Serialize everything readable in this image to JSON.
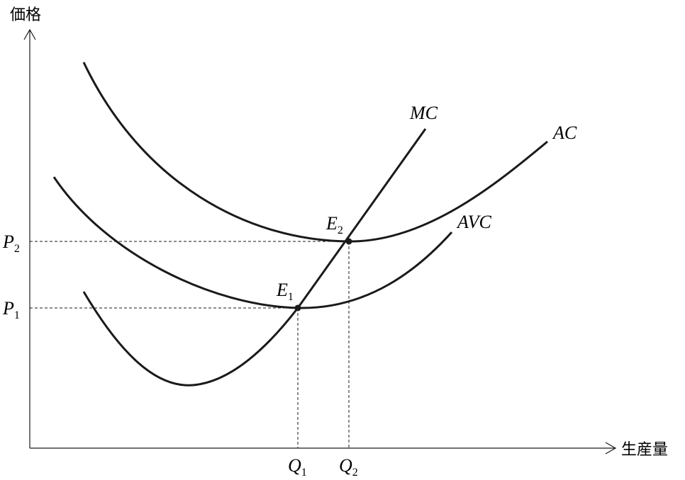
{
  "axes": {
    "y_label": "価格",
    "x_label": "生産量"
  },
  "curves": {
    "mc": "MC",
    "ac": "AC",
    "avc": "AVC"
  },
  "points": {
    "e1": {
      "letter": "E",
      "subscript": "1"
    },
    "e2": {
      "letter": "E",
      "subscript": "2"
    }
  },
  "prices": {
    "p1": {
      "letter": "P",
      "subscript": "1"
    },
    "p2": {
      "letter": "P",
      "subscript": "2"
    }
  },
  "quantities": {
    "q1": {
      "letter": "Q",
      "subscript": "1"
    },
    "q2": {
      "letter": "Q",
      "subscript": "2"
    }
  }
}
